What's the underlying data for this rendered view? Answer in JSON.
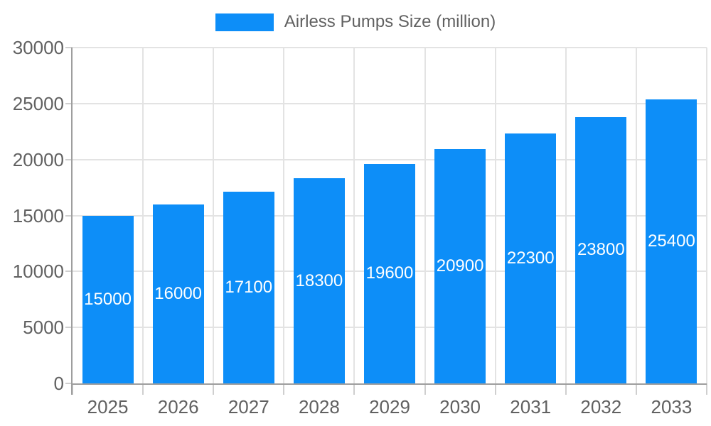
{
  "legend": {
    "label": "Airless Pumps Size (million)"
  },
  "chart_data": {
    "type": "bar",
    "title": "Airless Pumps Size (million)",
    "categories": [
      "2025",
      "2026",
      "2027",
      "2028",
      "2029",
      "2030",
      "2031",
      "2032",
      "2033"
    ],
    "values": [
      15000,
      16000,
      17100,
      18300,
      19600,
      20900,
      22300,
      23800,
      25400
    ],
    "series": [
      {
        "name": "Airless Pumps Size (million)",
        "values": [
          15000,
          16000,
          17100,
          18300,
          19600,
          20900,
          22300,
          23800,
          25400
        ]
      }
    ],
    "xlabel": "",
    "ylabel": "",
    "ylim": [
      0,
      30000
    ],
    "yticks": [
      0,
      5000,
      10000,
      15000,
      20000,
      25000,
      30000
    ],
    "grid": true,
    "legend_position": "top-center",
    "value_labels_inside_bars": true,
    "colors": {
      "bar": "#0d8ef8",
      "grid": "#e3e3e3",
      "axis": "#9e9e9e",
      "tick": "#cfcfcf",
      "text": "#616161",
      "value_label": "#ffffff",
      "background": "#ffffff"
    }
  }
}
